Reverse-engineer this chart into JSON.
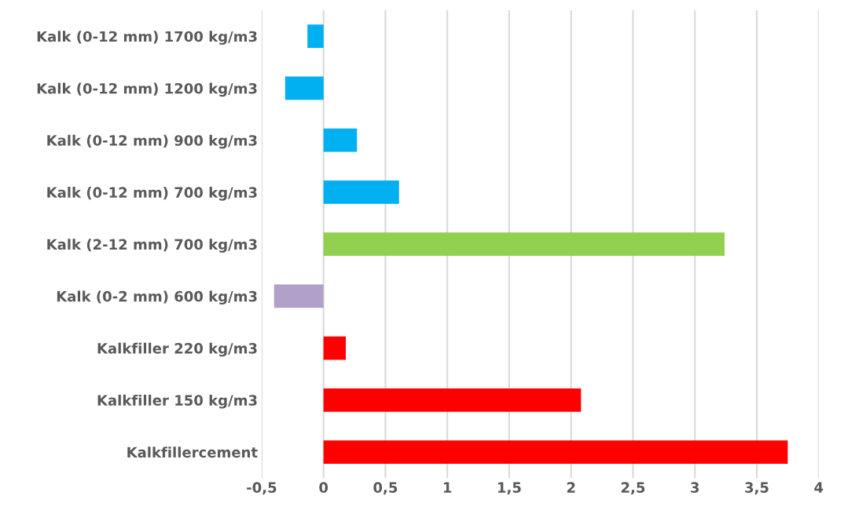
{
  "chart_data": {
    "type": "bar",
    "orientation": "horizontal",
    "categories": [
      "Kalk (0-12 mm) 1700 kg/m3",
      "Kalk (0-12 mm) 1200 kg/m3",
      "Kalk (0-12 mm) 900 kg/m3",
      "Kalk (0-12 mm) 700 kg/m3",
      "Kalk (2-12 mm) 700 kg/m3",
      "Kalk (0-2 mm) 600 kg/m3",
      "Kalkfiller 220 kg/m3",
      "Kalkfiller 150 kg/m3",
      "Kalkfillercement"
    ],
    "values": [
      -0.13,
      -0.31,
      0.27,
      0.61,
      3.24,
      -0.4,
      0.18,
      2.08,
      3.75
    ],
    "colors": [
      "#00b0f0",
      "#00b0f0",
      "#00b0f0",
      "#00b0f0",
      "#92d050",
      "#b1a0c7",
      "#ff0000",
      "#ff0000",
      "#ff0000"
    ],
    "xlim": [
      -0.5,
      4
    ],
    "xticks": [
      {
        "value": -0.5,
        "label": "-0,5"
      },
      0,
      {
        "value": 0.5,
        "label": "0,5"
      },
      1,
      {
        "value": 1.5,
        "label": "1,5"
      },
      2,
      {
        "value": 2.5,
        "label": "2,5"
      },
      3,
      {
        "value": 3.5,
        "label": "3,5"
      },
      4
    ],
    "grid": "x"
  }
}
